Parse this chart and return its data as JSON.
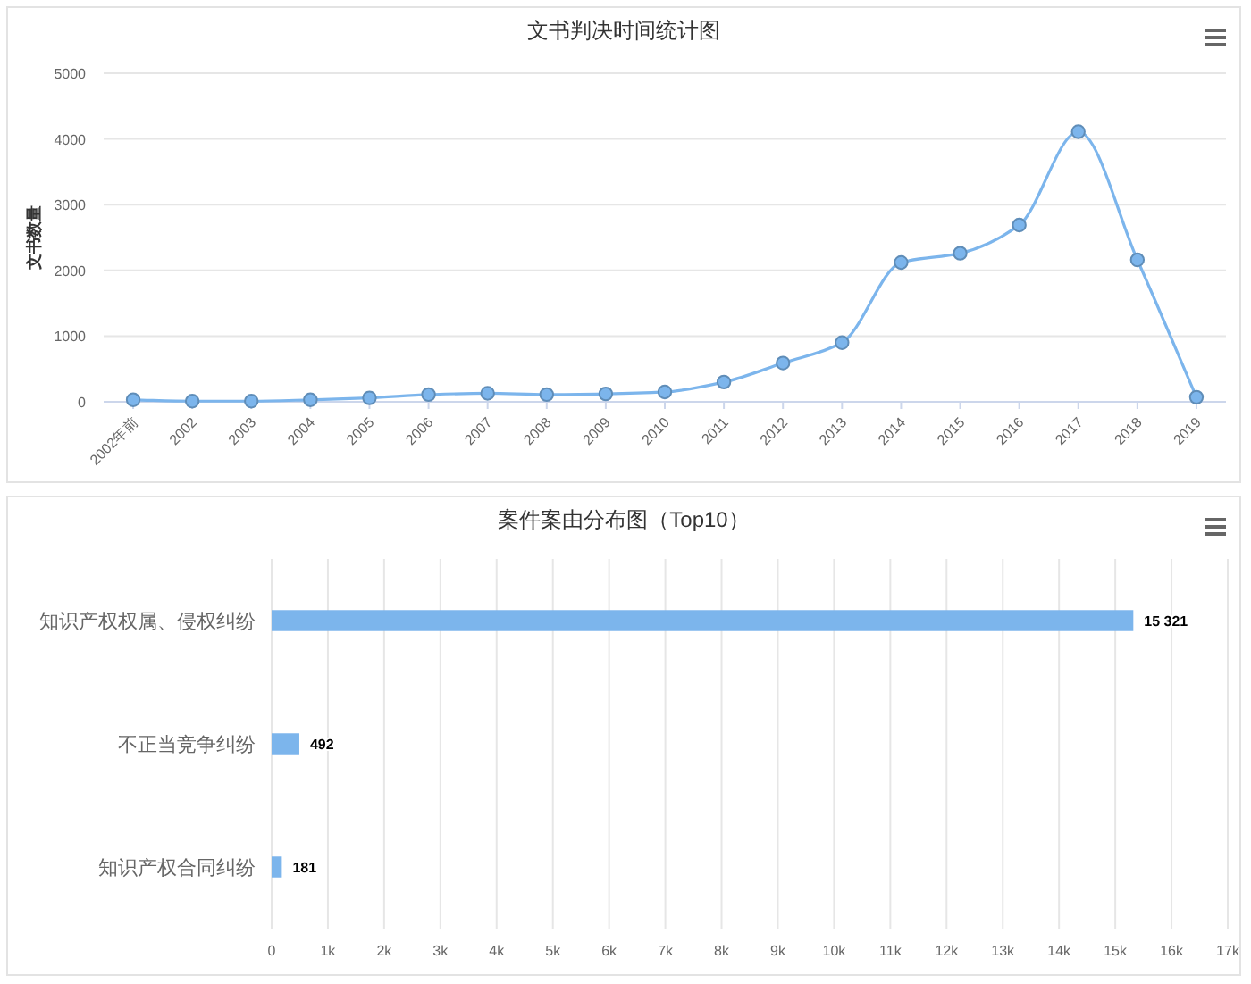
{
  "chart_data": [
    {
      "type": "line",
      "title": "文书判决时间统计图",
      "ylabel": "文书数量",
      "categories": [
        "2002年前",
        "2002",
        "2003",
        "2004",
        "2005",
        "2006",
        "2007",
        "2008",
        "2009",
        "2010",
        "2011",
        "2012",
        "2013",
        "2014",
        "2015",
        "2016",
        "2017",
        "2018",
        "2019"
      ],
      "series": [
        {
          "color": "#7cb5ec",
          "values": [
            30,
            10,
            10,
            30,
            60,
            110,
            130,
            110,
            120,
            150,
            300,
            590,
            900,
            2120,
            2260,
            2690,
            4110,
            2160,
            70
          ]
        }
      ],
      "ylim": [
        0,
        5000
      ],
      "yticks": [
        0,
        1000,
        2000,
        3000,
        4000,
        5000
      ],
      "grid": "y",
      "marker": "circle"
    },
    {
      "type": "bar",
      "orientation": "horizontal",
      "title": "案件案由分布图（Top10）",
      "categories": [
        "知识产权权属、侵权纠纷",
        "不正当竞争纠纷",
        "知识产权合同纠纷"
      ],
      "values": [
        15321,
        492,
        181
      ],
      "color": "#7cb5ec",
      "value_labels": [
        "15 321",
        "492",
        "181"
      ],
      "xlim": [
        0,
        17000
      ],
      "xticks": [
        0,
        {
          "value": 1000,
          "label": "1k"
        },
        {
          "value": 2000,
          "label": "2k"
        },
        {
          "value": 3000,
          "label": "3k"
        },
        {
          "value": 4000,
          "label": "4k"
        },
        {
          "value": 5000,
          "label": "5k"
        },
        {
          "value": 6000,
          "label": "6k"
        },
        {
          "value": 7000,
          "label": "7k"
        },
        {
          "value": 8000,
          "label": "8k"
        },
        {
          "value": 9000,
          "label": "9k"
        },
        {
          "value": 10000,
          "label": "10k"
        },
        {
          "value": 11000,
          "label": "11k"
        },
        {
          "value": 12000,
          "label": "12k"
        },
        {
          "value": 13000,
          "label": "13k"
        },
        {
          "value": 14000,
          "label": "14k"
        },
        {
          "value": 15000,
          "label": "15k"
        },
        {
          "value": 16000,
          "label": "16k"
        },
        {
          "value": 17000,
          "label": "17k"
        }
      ],
      "grid": "x"
    }
  ]
}
